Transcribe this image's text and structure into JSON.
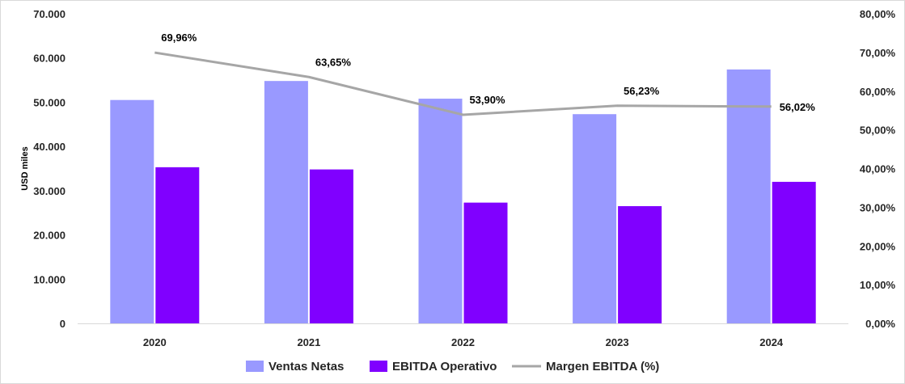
{
  "chart_data": {
    "type": "bar",
    "categories": [
      "2020",
      "2021",
      "2022",
      "2023",
      "2024"
    ],
    "series": [
      {
        "name": "Ventas Netas",
        "kind": "bar",
        "axis": "left",
        "color": "#9999ff",
        "values": [
          50500,
          54800,
          50800,
          47300,
          57400
        ]
      },
      {
        "name": "EBITDA Operativo",
        "kind": "bar",
        "axis": "left",
        "color": "#8000ff",
        "values": [
          35300,
          34800,
          27300,
          26500,
          32000
        ]
      },
      {
        "name": "Margen EBITDA (%)",
        "kind": "line",
        "axis": "right",
        "color": "#a6a6a6",
        "values": [
          69.96,
          63.65,
          53.9,
          56.23,
          56.02
        ]
      }
    ],
    "line_labels": [
      "69,96%",
      "63,65%",
      "53,90%",
      "56,23%",
      "56,02%"
    ],
    "ylabel": "USD miles",
    "ylim": [
      0,
      70000
    ],
    "y_ticks": [
      "0",
      "10.000",
      "20.000",
      "30.000",
      "40.000",
      "50.000",
      "60.000",
      "70.000"
    ],
    "y2lim": [
      0,
      80
    ],
    "y2_ticks": [
      "0,00%",
      "10,00%",
      "20,00%",
      "30,00%",
      "40,00%",
      "50,00%",
      "60,00%",
      "70,00%",
      "80,00%"
    ],
    "grid": false,
    "legend_position": "bottom"
  }
}
